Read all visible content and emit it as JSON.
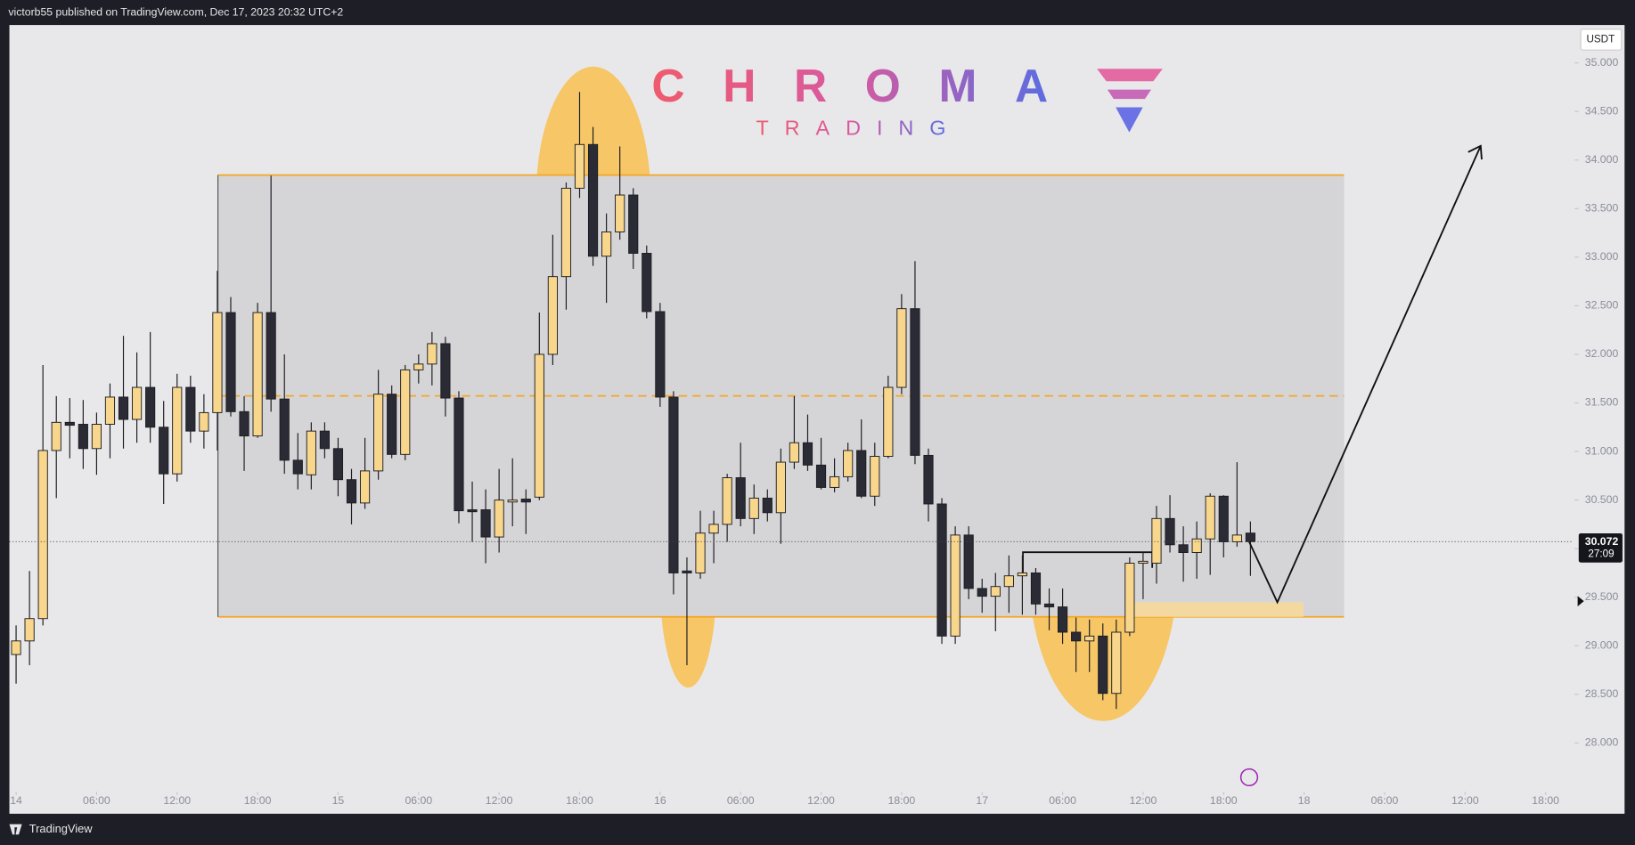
{
  "header": {
    "published": "victorb55 published on TradingView.com, Dec 17, 2023 20:32 UTC+2"
  },
  "watermark": {
    "title": "CHROMA",
    "subtitle": "TRADING"
  },
  "footer": {
    "brand": "TradingView"
  },
  "chart_data": {
    "type": "candlestick",
    "currency": "USDT",
    "up_color": "#f8d68c",
    "down_color": "#2b2b35",
    "last_price": 30.072,
    "countdown": "27:09",
    "xlim": [
      -0.5,
      116
    ],
    "ylim": [
      27.55,
      35.39
    ],
    "xticks": [
      {
        "value": 0,
        "label": "14"
      },
      {
        "value": 6,
        "label": "06:00"
      },
      {
        "value": 12,
        "label": "12:00"
      },
      {
        "value": 18,
        "label": "18:00"
      },
      {
        "value": 24,
        "label": "15"
      },
      {
        "value": 30,
        "label": "06:00"
      },
      {
        "value": 36,
        "label": "12:00"
      },
      {
        "value": 42,
        "label": "18:00"
      },
      {
        "value": 48,
        "label": "16"
      },
      {
        "value": 54,
        "label": "06:00"
      },
      {
        "value": 60,
        "label": "12:00"
      },
      {
        "value": 66,
        "label": "18:00"
      },
      {
        "value": 72,
        "label": "17"
      },
      {
        "value": 78,
        "label": "06:00"
      },
      {
        "value": 84,
        "label": "12:00"
      },
      {
        "value": 90,
        "label": "18:00"
      },
      {
        "value": 96,
        "label": "18"
      },
      {
        "value": 102,
        "label": "06:00"
      },
      {
        "value": 108,
        "label": "12:00"
      },
      {
        "value": 114,
        "label": "18:00"
      }
    ],
    "yticks": [
      {
        "value": 28,
        "label": "28.000"
      },
      {
        "value": 28.5,
        "label": "28.500"
      },
      {
        "value": 29,
        "label": "29.000"
      },
      {
        "value": 29.5,
        "label": "29.500"
      },
      {
        "value": 30,
        "label": "30.000"
      },
      {
        "value": 30.5,
        "label": "30.500"
      },
      {
        "value": 31,
        "label": "31.000"
      },
      {
        "value": 31.5,
        "label": "31.500"
      },
      {
        "value": 32,
        "label": "32.000"
      },
      {
        "value": 32.5,
        "label": "32.500"
      },
      {
        "value": 33,
        "label": "33.000"
      },
      {
        "value": 33.5,
        "label": "33.500"
      },
      {
        "value": 34,
        "label": "34.000"
      },
      {
        "value": 34.5,
        "label": "34.500"
      },
      {
        "value": 35,
        "label": "35.000"
      }
    ],
    "open": [
      28.91,
      29.05,
      29.28,
      31.01,
      31.3,
      31.28,
      31.03,
      31.28,
      31.56,
      31.33,
      31.66,
      31.25,
      30.77,
      31.66,
      31.21,
      31.4,
      32.43,
      31.41,
      31.16,
      32.43,
      31.54,
      30.91,
      30.76,
      31.21,
      31.03,
      30.71,
      30.47,
      30.8,
      31.59,
      30.97,
      31.84,
      31.9,
      32.11,
      31.55,
      30.4,
      30.4,
      30.12,
      30.48,
      30.51,
      30.53,
      32.0,
      32.8,
      33.71,
      34.16,
      33.01,
      33.26,
      33.64,
      33.04,
      32.44,
      31.56,
      29.77,
      29.75,
      30.16,
      30.25,
      30.73,
      30.31,
      30.52,
      30.37,
      30.89,
      31.09,
      30.86,
      30.63,
      30.74,
      31.01,
      30.54,
      30.95,
      31.66,
      32.47,
      30.96,
      30.46,
      29.1,
      30.14,
      29.59,
      29.51,
      29.61,
      29.72,
      29.75,
      29.43,
      29.4,
      29.14,
      29.05,
      29.1,
      28.51,
      29.14,
      29.85,
      29.85,
      30.31,
      30.04,
      29.96,
      30.1,
      30.54,
      30.07,
      30.16
    ],
    "high": [
      29.21,
      29.77,
      31.89,
      31.57,
      31.55,
      31.53,
      31.4,
      31.7,
      32.19,
      32.02,
      32.23,
      31.52,
      31.8,
      31.78,
      31.59,
      32.86,
      32.59,
      31.57,
      32.53,
      33.84,
      32.0,
      31.19,
      31.3,
      31.3,
      31.14,
      30.82,
      31.14,
      31.84,
      31.68,
      31.89,
      32.0,
      32.23,
      32.18,
      31.62,
      30.69,
      30.61,
      30.82,
      30.93,
      30.61,
      32.43,
      33.23,
      33.77,
      34.7,
      34.34,
      33.45,
      34.14,
      33.71,
      33.12,
      32.53,
      31.62,
      29.91,
      30.39,
      30.39,
      30.77,
      31.09,
      30.66,
      30.61,
      31.03,
      31.57,
      31.38,
      31.14,
      30.93,
      31.09,
      31.33,
      31.09,
      31.78,
      32.62,
      32.96,
      31.03,
      30.52,
      30.23,
      30.23,
      29.69,
      29.75,
      29.93,
      29.93,
      29.8,
      29.59,
      29.59,
      29.29,
      29.27,
      29.23,
      29.27,
      29.91,
      29.96,
      30.44,
      30.55,
      30.23,
      30.28,
      30.57,
      30.55,
      30.89,
      30.28
    ],
    "low": [
      28.61,
      28.8,
      29.21,
      30.52,
      30.93,
      30.82,
      30.76,
      30.93,
      31.03,
      31.09,
      31.09,
      30.46,
      30.69,
      31.09,
      31.03,
      31.01,
      31.36,
      30.8,
      31.14,
      31.41,
      30.77,
      30.61,
      30.61,
      30.93,
      30.54,
      30.25,
      30.41,
      30.71,
      30.93,
      30.91,
      31.7,
      31.68,
      31.36,
      30.26,
      30.07,
      29.85,
      29.96,
      30.23,
      30.15,
      30.5,
      31.89,
      32.46,
      33.61,
      32.91,
      32.53,
      33.18,
      32.88,
      32.37,
      31.46,
      29.53,
      28.8,
      29.69,
      29.85,
      30.07,
      30.23,
      30.15,
      30.28,
      30.05,
      30.82,
      30.8,
      30.61,
      30.58,
      30.69,
      30.52,
      30.44,
      30.93,
      31.59,
      30.87,
      30.28,
      29.02,
      29.02,
      29.48,
      29.34,
      29.15,
      29.34,
      29.32,
      29.32,
      29.16,
      29.02,
      28.73,
      28.73,
      28.44,
      28.35,
      29.1,
      29.48,
      29.64,
      29.96,
      29.66,
      29.69,
      29.73,
      29.91,
      30.02,
      29.72
    ],
    "close": [
      29.05,
      29.28,
      31.01,
      31.3,
      31.27,
      31.03,
      31.28,
      31.56,
      31.33,
      31.66,
      31.25,
      30.77,
      31.66,
      31.21,
      31.4,
      32.43,
      31.41,
      31.16,
      32.43,
      31.54,
      30.91,
      30.77,
      31.21,
      31.03,
      30.71,
      30.47,
      30.8,
      31.59,
      30.97,
      31.84,
      31.9,
      32.11,
      31.55,
      30.39,
      30.38,
      30.12,
      30.5,
      30.5,
      30.48,
      32.0,
      32.8,
      33.71,
      34.16,
      33.01,
      33.26,
      33.64,
      33.04,
      32.44,
      31.56,
      29.75,
      29.75,
      30.16,
      30.25,
      30.73,
      30.31,
      30.52,
      30.37,
      30.89,
      31.09,
      30.86,
      30.63,
      30.74,
      31.01,
      30.54,
      30.95,
      31.66,
      32.47,
      30.96,
      30.46,
      29.1,
      30.14,
      29.59,
      29.51,
      29.61,
      29.72,
      29.75,
      29.43,
      29.4,
      29.14,
      29.05,
      29.1,
      28.51,
      29.14,
      29.85,
      29.87,
      30.31,
      30.04,
      29.96,
      30.1,
      30.54,
      30.07,
      30.14,
      30.072
    ]
  }
}
